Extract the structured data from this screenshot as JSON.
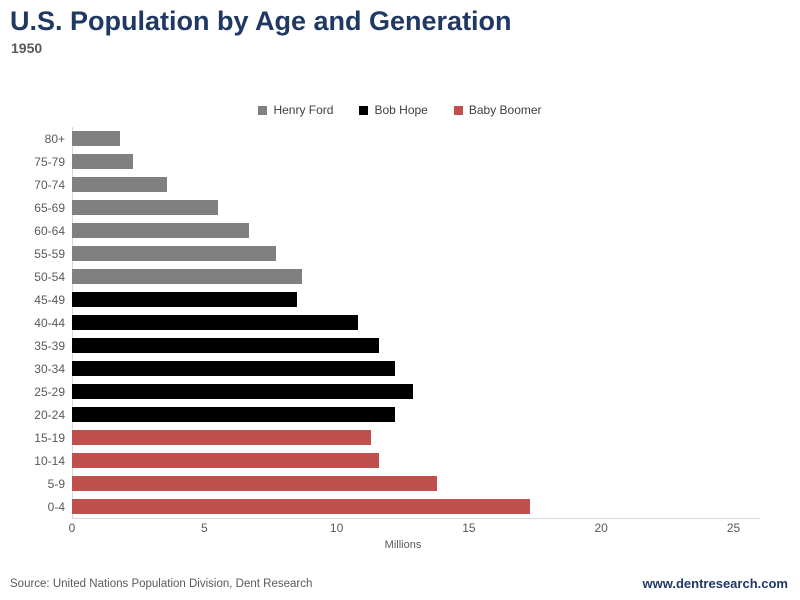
{
  "title": "U.S. Population by Age and Generation",
  "subtitle": "1950",
  "footer": {
    "source": "Source: United Nations Population Division, Dent Research",
    "website": "www.dentresearch.com"
  },
  "colors": {
    "title": "#1F3864",
    "subtitle": "#595959",
    "axis_text": "#595959",
    "axis_line": "#D9D9D9",
    "henry_ford": "#808080",
    "bob_hope": "#000000",
    "baby_boomer": "#C0504D"
  },
  "legend": {
    "items": [
      {
        "label": "Henry Ford",
        "color": "#808080"
      },
      {
        "label": "Bob Hope",
        "color": "#000000"
      },
      {
        "label": "Baby Boomer",
        "color": "#C0504D"
      }
    ]
  },
  "chart_data": {
    "type": "bar",
    "orientation": "horizontal",
    "title": "U.S. Population by Age and Generation",
    "subtitle": "1950",
    "xlabel": "Millions",
    "ylabel": "",
    "xlim": [
      0,
      25
    ],
    "xticks": [
      0,
      5,
      10,
      15,
      20,
      25
    ],
    "grid": false,
    "legend_position": "top-center",
    "categories": [
      "80+",
      "75-79",
      "70-74",
      "65-69",
      "60-64",
      "55-59",
      "50-54",
      "45-49",
      "40-44",
      "35-39",
      "30-34",
      "25-29",
      "20-24",
      "15-19",
      "10-14",
      "5-9",
      "0-4"
    ],
    "series": [
      {
        "name": "Henry Ford",
        "color": "#808080",
        "categories": [
          "80+",
          "75-79",
          "70-74",
          "65-69",
          "60-64",
          "55-59",
          "50-54"
        ],
        "values": [
          1.8,
          2.3,
          3.6,
          5.5,
          6.7,
          7.7,
          8.7
        ]
      },
      {
        "name": "Bob Hope",
        "color": "#000000",
        "categories": [
          "45-49",
          "40-44",
          "35-39",
          "30-34",
          "25-29",
          "20-24"
        ],
        "values": [
          8.5,
          10.8,
          11.6,
          12.2,
          12.9,
          12.2
        ]
      },
      {
        "name": "Baby Boomer",
        "color": "#C0504D",
        "categories": [
          "15-19",
          "10-14",
          "5-9",
          "0-4"
        ],
        "values": [
          11.3,
          11.6,
          13.8,
          17.3
        ]
      }
    ]
  }
}
